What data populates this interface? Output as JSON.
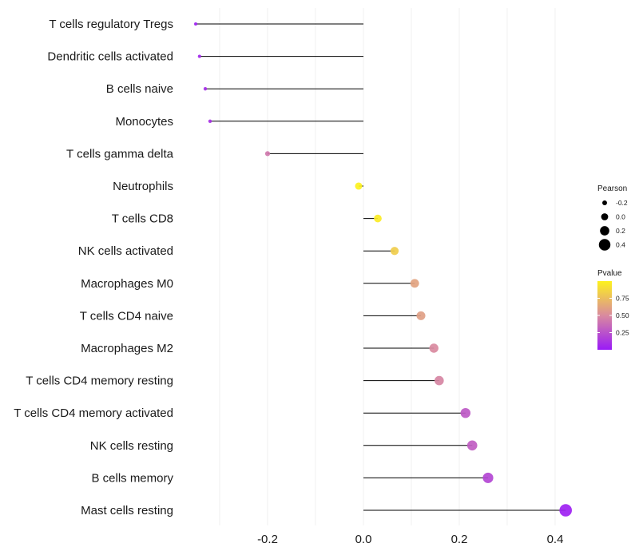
{
  "chart_data": {
    "type": "lollipop",
    "title": "",
    "xlabel": "",
    "ylabel": "",
    "xlim": [
      -0.365,
      0.435
    ],
    "x_ticks": [
      -0.2,
      0.0,
      0.2,
      0.4
    ],
    "x_tick_labels": [
      "-0.2",
      "0.0",
      "0.2",
      "0.4"
    ],
    "categories": [
      "T cells regulatory  Tregs",
      "Dendritic cells activated",
      "B cells naive",
      "Monocytes",
      "T cells gamma delta",
      "Neutrophils",
      "T cells CD8",
      "NK cells activated",
      "Macrophages M0",
      "T cells CD4 naive",
      "Macrophages M2",
      "T cells CD4 memory resting",
      "T cells CD4 memory activated",
      "NK cells resting",
      "B cells memory",
      "Mast cells resting"
    ],
    "pearson": [
      -0.35,
      -0.342,
      -0.33,
      -0.32,
      -0.2,
      -0.01,
      0.03,
      0.065,
      0.107,
      0.12,
      0.147,
      0.158,
      0.213,
      0.227,
      0.26,
      0.422
    ],
    "pvalue": [
      0.03,
      0.06,
      0.09,
      0.1,
      0.42,
      1.0,
      0.97,
      0.82,
      0.62,
      0.6,
      0.5,
      0.48,
      0.28,
      0.3,
      0.2,
      0.03
    ],
    "legend": {
      "position": "right",
      "size": {
        "title": "Pearson",
        "values": [
          -0.2,
          0.0,
          0.2,
          0.4
        ],
        "labels": [
          "-0.2",
          "0.0",
          "0.2",
          "0.4"
        ]
      },
      "color": {
        "title": "Pvalue",
        "range": [
          0.0,
          1.0
        ],
        "ticks": [
          0.25,
          0.5,
          0.75
        ],
        "tick_labels": [
          "0.25",
          "0.50",
          "0.75"
        ],
        "low_color": "#9a1af7",
        "mid_color": "#d98a9f",
        "high_color": "#fdf21e"
      }
    },
    "grid": true,
    "grid_color": "#ececec",
    "stem_color": "#000000"
  }
}
